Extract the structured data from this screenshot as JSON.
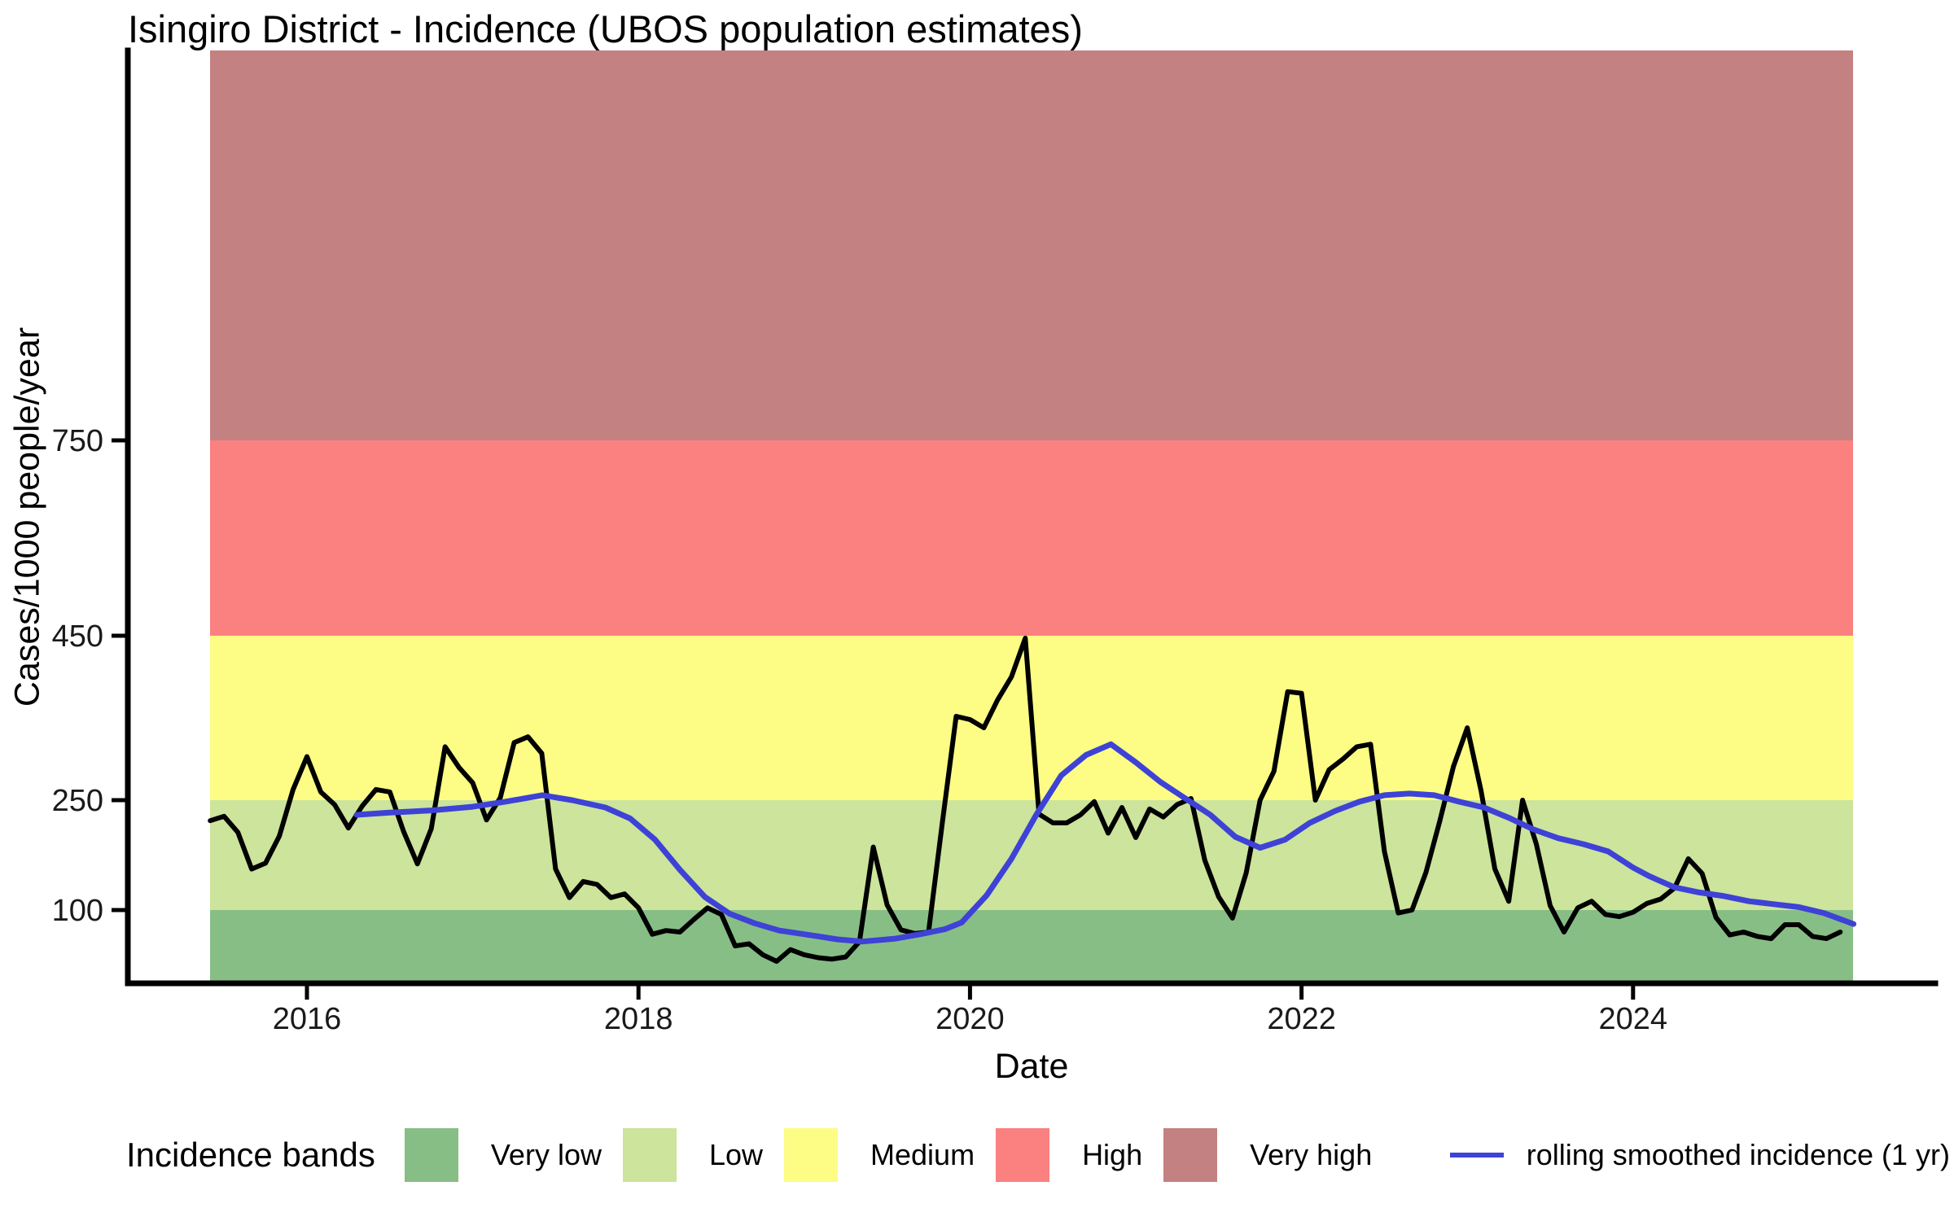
{
  "title": "Isingiro District - Incidence (UBOS population estimates)",
  "axes": {
    "x_label": "Date",
    "y_label": "Cases/1000 people/year",
    "x_tick_labels": [
      "2016",
      "2018",
      "2020",
      "2022",
      "2024"
    ],
    "y_tick_labels": [
      "100",
      "250",
      "450",
      "750"
    ]
  },
  "legend": {
    "title": "Incidence bands",
    "items": [
      {
        "label": "Very low",
        "color": "#87BE86"
      },
      {
        "label": "Low",
        "color": "#CCE49B"
      },
      {
        "label": "Medium",
        "color": "#FDFD85"
      },
      {
        "label": "High",
        "color": "#FB8080"
      },
      {
        "label": "Very high",
        "color": "#C48181"
      }
    ],
    "line_label": "rolling smoothed incidence (1 yr)",
    "line_color": "#3E42D6"
  },
  "colors": {
    "incidence_line": "#000000",
    "smoothed_line": "#3E42D6",
    "axis": "#000000",
    "tick_text": "#1A1A1A"
  },
  "chart_data": {
    "type": "line",
    "title": "Isingiro District - Incidence (UBOS population estimates)",
    "xlabel": "Date",
    "ylabel": "Cases/1000 people/year",
    "x_tick_values": [
      2016,
      2018,
      2020,
      2022,
      2024
    ],
    "y_tick_values": [
      100,
      250,
      450,
      750
    ],
    "xlim": [
      2015.417,
      2025.33
    ],
    "ylim": [
      0,
      1350
    ],
    "grid": false,
    "legend_position": "bottom",
    "bands": [
      {
        "label": "Very low",
        "from": 0,
        "to": 100,
        "color": "#87BE86"
      },
      {
        "label": "Low",
        "from": 100,
        "to": 250,
        "color": "#CCE49B"
      },
      {
        "label": "Medium",
        "from": 250,
        "to": 450,
        "color": "#FDFD85"
      },
      {
        "label": "High",
        "from": 450,
        "to": 750,
        "color": "#FB8080"
      },
      {
        "label": "Very high",
        "from": 750,
        "to": 1350,
        "color": "#C48181"
      }
    ],
    "series": [
      {
        "name": "monthly incidence",
        "color": "#000000",
        "frequency": "monthly",
        "start_year": 2015,
        "start_month": 6,
        "values": [
          222,
          228,
          206,
          156,
          164,
          201,
          263,
          303,
          260,
          244,
          212,
          242,
          263,
          260,
          207,
          163,
          211,
          315,
          290,
          271,
          223,
          253,
          320,
          327,
          307,
          156,
          117,
          139,
          135,
          117,
          122,
          103,
          67,
          72,
          70,
          87,
          103,
          94,
          51,
          54,
          39,
          30,
          46,
          39,
          35,
          33,
          36,
          57,
          186,
          107,
          73,
          68,
          70,
          220,
          352,
          348,
          338,
          372,
          400,
          447,
          231,
          219,
          219,
          230,
          248,
          205,
          240,
          199,
          238,
          227,
          244,
          252,
          168,
          118,
          89,
          151,
          250,
          285,
          382,
          380,
          250,
          287,
          300,
          315,
          318,
          180,
          96,
          100,
          151,
          221,
          291,
          338,
          261,
          156,
          112,
          250,
          190,
          106,
          70,
          103,
          112,
          94,
          91,
          97,
          109,
          115,
          130,
          170,
          150,
          90,
          66,
          70,
          64,
          61,
          80,
          80,
          64,
          61,
          70
        ]
      },
      {
        "name": "rolling smoothed incidence (1 yr)",
        "color": "#3E42D6",
        "points": [
          [
            2016.3,
            230
          ],
          [
            2016.5,
            233
          ],
          [
            2016.75,
            236
          ],
          [
            2017.0,
            241
          ],
          [
            2017.2,
            248
          ],
          [
            2017.42,
            256
          ],
          [
            2017.6,
            250
          ],
          [
            2017.8,
            240
          ],
          [
            2017.95,
            225
          ],
          [
            2018.1,
            196
          ],
          [
            2018.25,
            155
          ],
          [
            2018.4,
            118
          ],
          [
            2018.55,
            95
          ],
          [
            2018.7,
            82
          ],
          [
            2018.85,
            72
          ],
          [
            2019.0,
            67
          ],
          [
            2019.2,
            60
          ],
          [
            2019.35,
            57
          ],
          [
            2019.55,
            61
          ],
          [
            2019.7,
            67
          ],
          [
            2019.85,
            74
          ],
          [
            2019.95,
            83
          ],
          [
            2020.1,
            120
          ],
          [
            2020.25,
            170
          ],
          [
            2020.4,
            230
          ],
          [
            2020.55,
            280
          ],
          [
            2020.7,
            305
          ],
          [
            2020.85,
            318
          ],
          [
            2021.0,
            296
          ],
          [
            2021.15,
            272
          ],
          [
            2021.3,
            252
          ],
          [
            2021.45,
            230
          ],
          [
            2021.6,
            200
          ],
          [
            2021.75,
            185
          ],
          [
            2021.9,
            196
          ],
          [
            2022.05,
            219
          ],
          [
            2022.2,
            235
          ],
          [
            2022.35,
            248
          ],
          [
            2022.5,
            256
          ],
          [
            2022.65,
            258
          ],
          [
            2022.8,
            256
          ],
          [
            2022.95,
            248
          ],
          [
            2023.1,
            240
          ],
          [
            2023.25,
            226
          ],
          [
            2023.4,
            210
          ],
          [
            2023.55,
            198
          ],
          [
            2023.7,
            190
          ],
          [
            2023.85,
            180
          ],
          [
            2024.0,
            158
          ],
          [
            2024.1,
            146
          ],
          [
            2024.25,
            131
          ],
          [
            2024.4,
            124
          ],
          [
            2024.55,
            119
          ],
          [
            2024.7,
            112
          ],
          [
            2024.85,
            108
          ],
          [
            2025.0,
            104
          ],
          [
            2025.15,
            96
          ],
          [
            2025.33,
            81
          ]
        ]
      }
    ]
  }
}
